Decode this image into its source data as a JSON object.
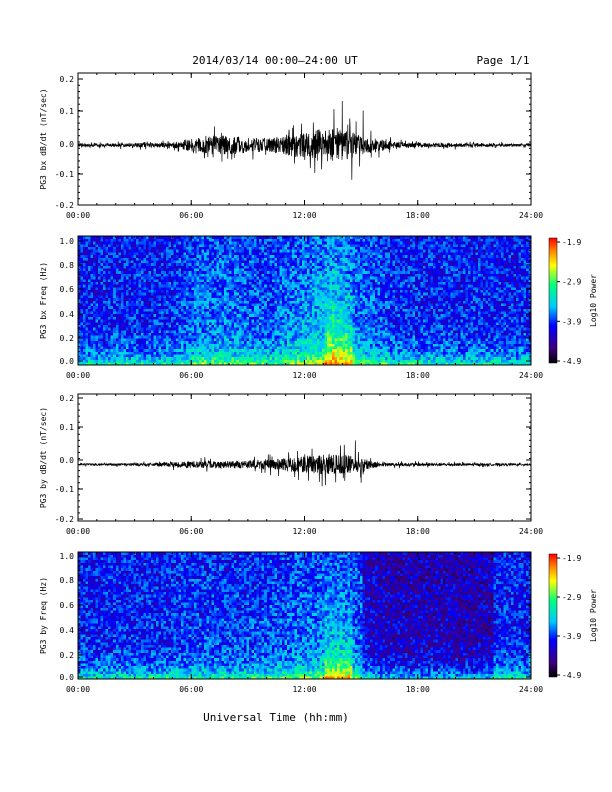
{
  "header": {
    "title": "2014/03/14  00:00–24:00 UT",
    "page": "Page 1/1"
  },
  "footer": {
    "xlabel": "Universal Time (hh:mm)"
  },
  "colors": {
    "trace": "#000000",
    "colormap": [
      "#000000",
      "#3c0080",
      "#0000ff",
      "#00c8ff",
      "#00ff80",
      "#ffff00",
      "#ff8000",
      "#ff0000"
    ]
  },
  "chart_data": [
    {
      "type": "line",
      "ylabel": "PG3 bx dB/dt (nT/sec)",
      "x_ticks": [
        "00:00",
        "06:00",
        "12:00",
        "18:00",
        "24:00"
      ],
      "y_ticks": [
        "-0.2",
        "-0.1",
        "0.0",
        "0.1",
        "0.2"
      ],
      "xlim_hours": [
        0,
        24
      ],
      "ylim": [
        -0.2,
        0.2
      ],
      "baseline": -0.01,
      "activity_envelope": [
        {
          "hour": 0,
          "amp": 0.004
        },
        {
          "hour": 5,
          "amp": 0.008
        },
        {
          "hour": 6.5,
          "amp": 0.03
        },
        {
          "hour": 8,
          "amp": 0.03
        },
        {
          "hour": 10,
          "amp": 0.02
        },
        {
          "hour": 13.5,
          "amp": 0.06
        },
        {
          "hour": 15,
          "amp": 0.03
        },
        {
          "hour": 17,
          "amp": 0.008
        },
        {
          "hour": 24,
          "amp": 0.004
        }
      ],
      "peaks": [
        {
          "hour": 14.0,
          "value": 0.13
        },
        {
          "hour": 14.4,
          "value": 0.075
        },
        {
          "hour": 15.1,
          "value": 0.1
        },
        {
          "hour": 14.5,
          "value": -0.12
        }
      ]
    },
    {
      "type": "heatmap",
      "ylabel": "PG3 bx Freq (Hz)",
      "x_ticks": [
        "00:00",
        "06:00",
        "12:00",
        "18:00",
        "24:00"
      ],
      "y_ticks": [
        "0.0",
        "0.2",
        "0.4",
        "0.6",
        "0.8",
        "1.0"
      ],
      "ylim": [
        0,
        1.0
      ],
      "colorbar": {
        "label": "Log10 Power",
        "ticks": [
          "-1.9",
          "-2.9",
          "-3.9",
          "-4.9"
        ],
        "range": [
          -4.9,
          -1.9
        ]
      },
      "activity_envelope_ref": "panel_1"
    },
    {
      "type": "line",
      "ylabel": "PG3 by dB/dt (nT/sec)",
      "x_ticks": [
        "00:00",
        "06:00",
        "12:00",
        "18:00",
        "24:00"
      ],
      "y_ticks": [
        "-0.2",
        "-0.1",
        "0.0",
        "0.1",
        "0.2"
      ],
      "xlim_hours": [
        0,
        24
      ],
      "ylim": [
        -0.2,
        0.2
      ],
      "baseline": -0.02,
      "activity_envelope": [
        {
          "hour": 0,
          "amp": 0.003
        },
        {
          "hour": 4,
          "amp": 0.005
        },
        {
          "hour": 6,
          "amp": 0.012
        },
        {
          "hour": 8,
          "amp": 0.012
        },
        {
          "hour": 10,
          "amp": 0.015
        },
        {
          "hour": 13,
          "amp": 0.035
        },
        {
          "hour": 14.5,
          "amp": 0.03
        },
        {
          "hour": 16,
          "amp": 0.006
        },
        {
          "hour": 24,
          "amp": 0.003
        }
      ],
      "peaks": [
        {
          "hour": 14.7,
          "value": 0.06
        },
        {
          "hour": 15.0,
          "value": -0.08
        }
      ]
    },
    {
      "type": "heatmap",
      "ylabel": "PG3 by Freq (Hz)",
      "x_ticks": [
        "00:00",
        "06:00",
        "12:00",
        "18:00",
        "24:00"
      ],
      "y_ticks": [
        "0.0",
        "0.2",
        "0.4",
        "0.6",
        "0.8",
        "1.0"
      ],
      "ylim": [
        0,
        1.0
      ],
      "colorbar": {
        "label": "Log10 Power",
        "ticks": [
          "-1.9",
          "-2.9",
          "-3.9",
          "-4.9"
        ],
        "range": [
          -4.9,
          -1.9
        ]
      }
    }
  ]
}
